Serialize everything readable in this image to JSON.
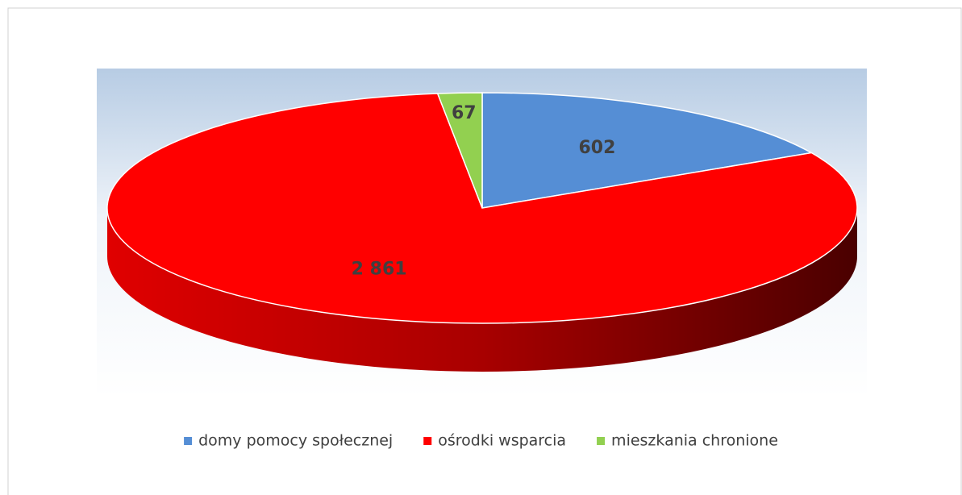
{
  "chart_data": {
    "type": "pie",
    "categories": [
      "domy pomocy społecznej",
      "ośrodki wsparcia",
      "mieszkania chronione"
    ],
    "values": [
      602,
      2861,
      67
    ],
    "value_labels": [
      "602",
      "2 861",
      "67"
    ],
    "colors": [
      "#558ed5",
      "#ff0000",
      "#92d050"
    ],
    "legend": "bottom"
  }
}
